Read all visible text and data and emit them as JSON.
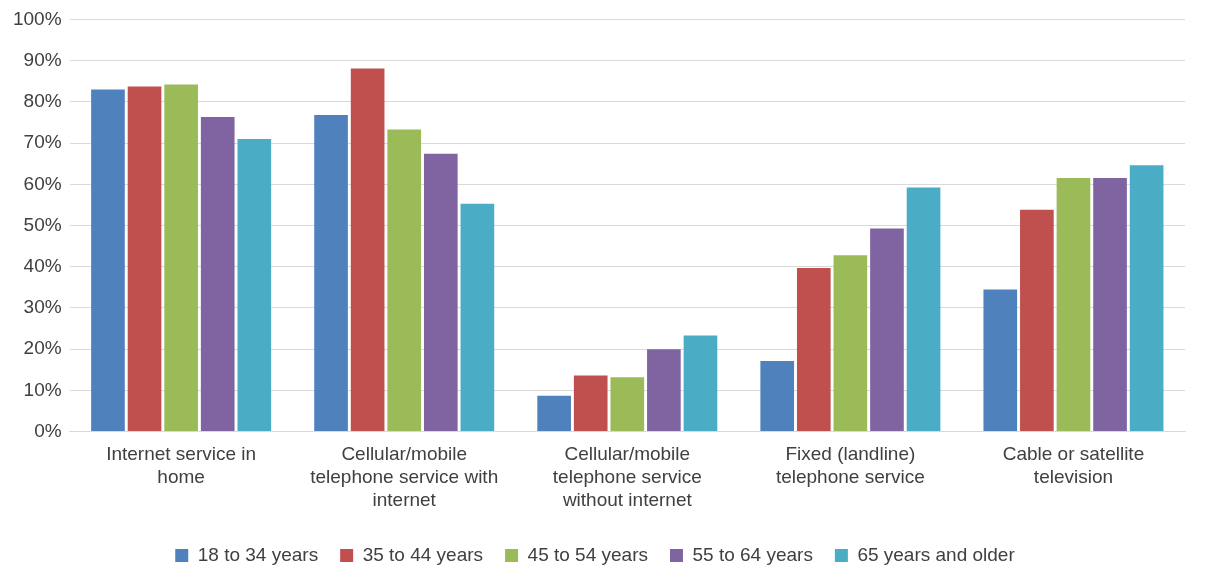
{
  "chart_data": {
    "type": "bar",
    "categories": [
      "Internet service in home",
      "Cellular/mobile telephone service with internet",
      "Cellular/mobile telephone service without internet",
      "Fixed (landline) telephone service",
      "Cable or satellite television"
    ],
    "series": [
      {
        "name": "18 to 34 years",
        "color": "#4f81bd",
        "values": [
          83,
          76.8,
          8.7,
          17.1,
          34.5
        ]
      },
      {
        "name": "35 to 44 years",
        "color": "#c0504d",
        "values": [
          83.7,
          88.1,
          13.6,
          39.7,
          53.8
        ]
      },
      {
        "name": "45 to 54 years",
        "color": "#9bbb59",
        "values": [
          84.2,
          73.3,
          13.2,
          42.8,
          61.5
        ]
      },
      {
        "name": "55 to 64 years",
        "color": "#8064a2",
        "values": [
          76.3,
          67.4,
          20,
          49.3,
          61.5
        ]
      },
      {
        "name": "65 years and older",
        "color": "#4bacc6",
        "values": [
          71,
          55.3,
          23.3,
          59.2,
          64.6
        ]
      }
    ],
    "ylim": [
      0,
      100
    ],
    "yticks": [
      {
        "value": 0,
        "label": "0%"
      },
      {
        "value": 10,
        "label": "10%"
      },
      {
        "value": 20,
        "label": "20%"
      },
      {
        "value": 30,
        "label": "30%"
      },
      {
        "value": 40,
        "label": "40%"
      },
      {
        "value": 50,
        "label": "50%"
      },
      {
        "value": 60,
        "label": "60%"
      },
      {
        "value": 70,
        "label": "70%"
      },
      {
        "value": 80,
        "label": "80%"
      },
      {
        "value": 90,
        "label": "90%"
      },
      {
        "value": 100,
        "label": "100%"
      }
    ],
    "grid": "y",
    "legend": "bottom"
  }
}
